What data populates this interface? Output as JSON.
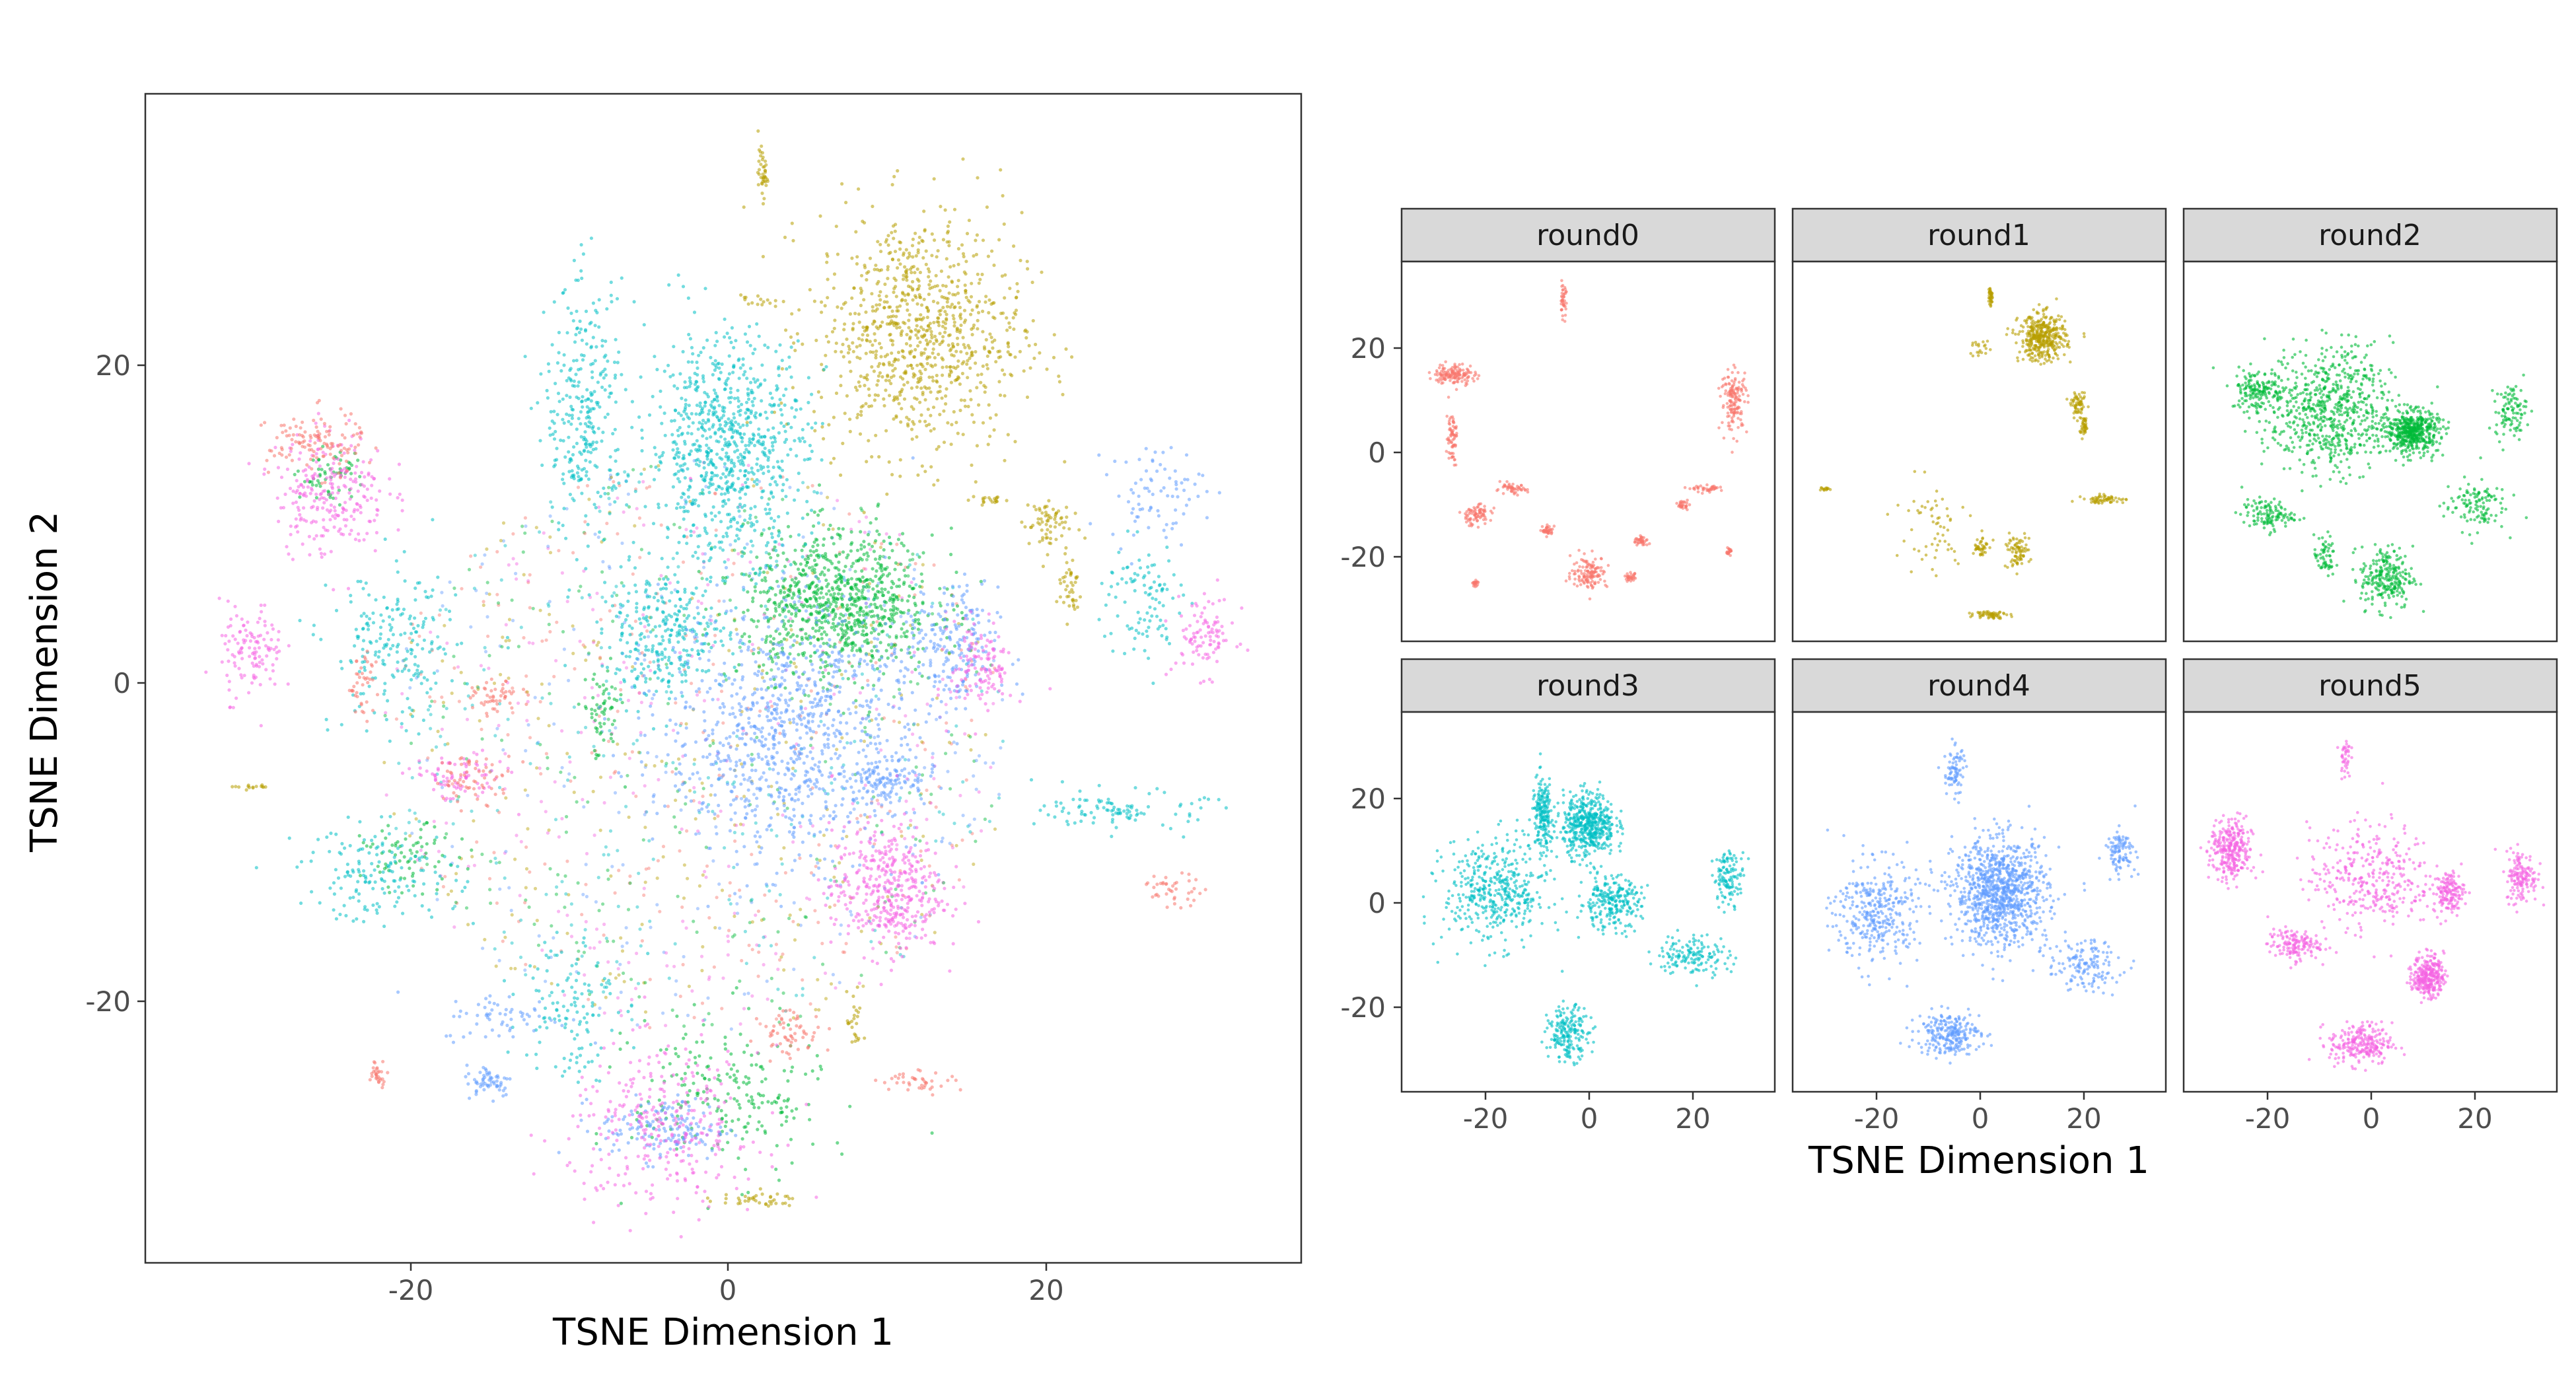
{
  "chart_data": [
    {
      "type": "scatter",
      "title": "",
      "xlabel": "TSNE Dimension 1",
      "ylabel": "TSNE Dimension 2",
      "xlim": [
        -36,
        36
      ],
      "ylim": [
        -36,
        37
      ],
      "x_ticks": [
        -20,
        0,
        20
      ],
      "y_ticks": [
        -20,
        0,
        20
      ],
      "x_tick_labels": [
        "-20",
        "0",
        "20"
      ],
      "y_tick_labels": [
        "-20",
        "0",
        "20"
      ],
      "grid": false,
      "legend": "none",
      "series": [
        {
          "name": "round0",
          "color": "#F8766D"
        },
        {
          "name": "round1",
          "color": "#B79F00"
        },
        {
          "name": "round2",
          "color": "#00BA38"
        },
        {
          "name": "round3",
          "color": "#00BFC4"
        },
        {
          "name": "round4",
          "color": "#619CFF"
        },
        {
          "name": "round5",
          "color": "#F564E3"
        }
      ],
      "clusters": [
        {
          "series": "round1",
          "cx": 12,
          "cy": 22,
          "rx": 6.5,
          "ry": 7.5,
          "n": 900
        },
        {
          "series": "round1",
          "cx": 2.2,
          "cy": 32,
          "rx": 0.3,
          "ry": 1.5,
          "n": 40
        },
        {
          "series": "round1",
          "cx": 20,
          "cy": 10,
          "rx": 1.5,
          "ry": 1.8,
          "n": 70
        },
        {
          "series": "round1",
          "cx": 21.5,
          "cy": 6,
          "rx": 0.8,
          "ry": 2.0,
          "n": 40
        },
        {
          "series": "round1",
          "cx": 16.5,
          "cy": 11.5,
          "rx": 1.2,
          "ry": 0.3,
          "n": 20
        },
        {
          "series": "round1",
          "cx": 1.5,
          "cy": -32.5,
          "rx": 3.0,
          "ry": 0.4,
          "n": 40
        },
        {
          "series": "round1",
          "cx": 8,
          "cy": -21.5,
          "rx": 0.5,
          "ry": 2.0,
          "n": 25
        },
        {
          "series": "round1",
          "cx": -30,
          "cy": -6.5,
          "rx": 1.2,
          "ry": 0.2,
          "n": 15
        },
        {
          "series": "round1",
          "cx": 1.8,
          "cy": 24,
          "rx": 1.0,
          "ry": 0.4,
          "n": 15
        },
        {
          "series": "round2",
          "cx": 7,
          "cy": 5,
          "rx": 6.0,
          "ry": 4.5,
          "n": 850
        },
        {
          "series": "round2",
          "cx": -8,
          "cy": -2,
          "rx": 1.2,
          "ry": 3.0,
          "n": 60
        },
        {
          "series": "round2",
          "cx": 0,
          "cy": -26,
          "rx": 6.0,
          "ry": 5.0,
          "n": 220
        },
        {
          "series": "round2",
          "cx": -25,
          "cy": 13,
          "rx": 2.0,
          "ry": 1.5,
          "n": 60
        },
        {
          "series": "round2",
          "cx": -20,
          "cy": -11,
          "rx": 3.0,
          "ry": 2.0,
          "n": 70
        },
        {
          "series": "round3",
          "cx": 0,
          "cy": 15,
          "rx": 5.0,
          "ry": 7.0,
          "n": 800
        },
        {
          "series": "round3",
          "cx": -9,
          "cy": 17,
          "rx": 2.5,
          "ry": 8.0,
          "n": 300
        },
        {
          "series": "round3",
          "cx": -21,
          "cy": 2,
          "rx": 4.0,
          "ry": 5.0,
          "n": 200
        },
        {
          "series": "round3",
          "cx": -22,
          "cy": -12,
          "rx": 5.0,
          "ry": 3.0,
          "n": 150
        },
        {
          "series": "round3",
          "cx": -4,
          "cy": 3,
          "rx": 4.0,
          "ry": 4.0,
          "n": 300
        },
        {
          "series": "round3",
          "cx": -10,
          "cy": -20,
          "rx": 3.0,
          "ry": 5.0,
          "n": 120
        },
        {
          "series": "round3",
          "cx": 26,
          "cy": 5,
          "rx": 2.5,
          "ry": 4.0,
          "n": 100
        },
        {
          "series": "round3",
          "cx": 25,
          "cy": -8,
          "rx": 5.0,
          "ry": 1.2,
          "n": 100
        },
        {
          "series": "round4",
          "cx": 4,
          "cy": -3,
          "rx": 8.0,
          "ry": 8.0,
          "n": 900
        },
        {
          "series": "round4",
          "cx": 14,
          "cy": 2,
          "rx": 3.0,
          "ry": 4.0,
          "n": 200
        },
        {
          "series": "round4",
          "cx": -4,
          "cy": -28,
          "rx": 4.0,
          "ry": 2.0,
          "n": 150
        },
        {
          "series": "round4",
          "cx": -15,
          "cy": -25,
          "rx": 1.5,
          "ry": 1.0,
          "n": 60
        },
        {
          "series": "round4",
          "cx": -14,
          "cy": -21,
          "rx": 4.0,
          "ry": 1.5,
          "n": 60
        },
        {
          "series": "round4",
          "cx": 10,
          "cy": -6,
          "rx": 2.5,
          "ry": 1.5,
          "n": 100
        },
        {
          "series": "round4",
          "cx": 27,
          "cy": 12,
          "rx": 3.0,
          "ry": 3.0,
          "n": 80
        },
        {
          "series": "round5",
          "cx": 10,
          "cy": -13,
          "rx": 3.5,
          "ry": 4.0,
          "n": 400
        },
        {
          "series": "round5",
          "cx": -25,
          "cy": 12,
          "rx": 3.5,
          "ry": 4.0,
          "n": 250
        },
        {
          "series": "round5",
          "cx": -30,
          "cy": 2,
          "rx": 2.0,
          "ry": 3.0,
          "n": 120
        },
        {
          "series": "round5",
          "cx": -4,
          "cy": -28,
          "rx": 6.0,
          "ry": 5.0,
          "n": 300
        },
        {
          "series": "round5",
          "cx": 30,
          "cy": 3,
          "rx": 2.0,
          "ry": 2.5,
          "n": 100
        },
        {
          "series": "round5",
          "cx": -17,
          "cy": -6,
          "rx": 3.0,
          "ry": 1.5,
          "n": 80
        },
        {
          "series": "round5",
          "cx": 16,
          "cy": 1,
          "rx": 2.0,
          "ry": 3.0,
          "n": 120
        },
        {
          "series": "round0",
          "cx": -26,
          "cy": 15,
          "rx": 3.0,
          "ry": 2.0,
          "n": 120
        },
        {
          "series": "round0",
          "cx": -23,
          "cy": 0,
          "rx": 1.0,
          "ry": 2.0,
          "n": 40
        },
        {
          "series": "round0",
          "cx": -14.5,
          "cy": -1,
          "rx": 1.5,
          "ry": 1.0,
          "n": 50
        },
        {
          "series": "round0",
          "cx": 28,
          "cy": -13,
          "rx": 2.0,
          "ry": 1.0,
          "n": 40
        },
        {
          "series": "round0",
          "cx": -22,
          "cy": -24.5,
          "rx": 0.6,
          "ry": 0.8,
          "n": 30
        },
        {
          "series": "round0",
          "cx": 4,
          "cy": -22,
          "rx": 2.0,
          "ry": 1.5,
          "n": 60
        },
        {
          "series": "round0",
          "cx": -16,
          "cy": -6,
          "rx": 2.5,
          "ry": 1.5,
          "n": 60
        },
        {
          "series": "round0",
          "cx": 12,
          "cy": -25,
          "rx": 2.5,
          "ry": 0.7,
          "n": 40
        }
      ],
      "background_points": 1600
    },
    {
      "type": "scatter",
      "layout": "facet_wrap",
      "xlabel": "TSNE Dimension 1",
      "ylabel": "",
      "xlim": [
        -36,
        36
      ],
      "ylim": [
        -36,
        37
      ],
      "x_ticks": [
        -20,
        0,
        20
      ],
      "y_ticks": [
        -20,
        0,
        20
      ],
      "x_tick_labels": [
        "-20",
        "0",
        "20"
      ],
      "y_tick_labels": [
        "-20",
        "0",
        "20"
      ],
      "grid": false,
      "legend": "none",
      "facets": [
        {
          "label": "round0",
          "color": "#F8766D",
          "clusters": [
            {
              "cx": -26,
              "cy": 15,
              "rx": 4.0,
              "ry": 2.0,
              "n": 140
            },
            {
              "cx": -26.5,
              "cy": 3,
              "rx": 1.0,
              "ry": 5.0,
              "n": 70
            },
            {
              "cx": -22,
              "cy": -12,
              "rx": 3.0,
              "ry": 2.0,
              "n": 80
            },
            {
              "cx": -15,
              "cy": -7,
              "rx": 3.0,
              "ry": 1.0,
              "n": 50
            },
            {
              "cx": -5,
              "cy": 29,
              "rx": 0.6,
              "ry": 3.0,
              "n": 40
            },
            {
              "cx": 28,
              "cy": 10,
              "rx": 2.5,
              "ry": 6.0,
              "n": 150
            },
            {
              "cx": 0,
              "cy": -23,
              "rx": 3.5,
              "ry": 3.0,
              "n": 130
            },
            {
              "cx": -8,
              "cy": -15,
              "rx": 1.0,
              "ry": 1.0,
              "n": 40
            },
            {
              "cx": 10,
              "cy": -17,
              "rx": 1.5,
              "ry": 1.0,
              "n": 40
            },
            {
              "cx": 23,
              "cy": -7,
              "rx": 3.0,
              "ry": 0.6,
              "n": 40
            },
            {
              "cx": 18,
              "cy": -10,
              "rx": 1.0,
              "ry": 0.8,
              "n": 30
            },
            {
              "cx": 27,
              "cy": -19,
              "rx": 0.6,
              "ry": 0.8,
              "n": 20
            },
            {
              "cx": -22,
              "cy": -25,
              "rx": 0.6,
              "ry": 0.6,
              "n": 20
            },
            {
              "cx": 8,
              "cy": -24,
              "rx": 1.2,
              "ry": 0.8,
              "n": 30
            }
          ]
        },
        {
          "label": "round1",
          "color": "#B79F00",
          "clusters": [
            {
              "cx": 12,
              "cy": 22,
              "rx": 4.5,
              "ry": 4.5,
              "n": 400
            },
            {
              "cx": 2,
              "cy": 30,
              "rx": 0.4,
              "ry": 2.0,
              "n": 40
            },
            {
              "cx": 19,
              "cy": 9,
              "rx": 1.5,
              "ry": 2.0,
              "n": 60
            },
            {
              "cx": 20,
              "cy": 5,
              "rx": 0.8,
              "ry": 2.0,
              "n": 40
            },
            {
              "cx": 24,
              "cy": -9,
              "rx": 4.0,
              "ry": 0.8,
              "n": 60
            },
            {
              "cx": 7,
              "cy": -19,
              "rx": 2.5,
              "ry": 3.0,
              "n": 80
            },
            {
              "cx": 2,
              "cy": -31,
              "rx": 3.0,
              "ry": 0.8,
              "n": 60
            },
            {
              "cx": 0,
              "cy": -18,
              "rx": 1.5,
              "ry": 2.0,
              "n": 40
            },
            {
              "cx": -30,
              "cy": -7,
              "rx": 1.2,
              "ry": 0.3,
              "n": 15
            },
            {
              "cx": -10,
              "cy": -15,
              "rx": 8.0,
              "ry": 10.0,
              "n": 60
            },
            {
              "cx": 0,
              "cy": 20,
              "rx": 2.0,
              "ry": 2.0,
              "n": 20
            }
          ]
        },
        {
          "label": "round2",
          "color": "#00BA38",
          "clusters": [
            {
              "cx": 8,
              "cy": 4,
              "rx": 5.0,
              "ry": 4.0,
              "n": 500
            },
            {
              "cx": -8,
              "cy": 8,
              "rx": 12.0,
              "ry": 12.0,
              "n": 700
            },
            {
              "cx": 3,
              "cy": -24,
              "rx": 5.0,
              "ry": 6.0,
              "n": 250
            },
            {
              "cx": -22,
              "cy": 12,
              "rx": 5.0,
              "ry": 4.0,
              "n": 150
            },
            {
              "cx": 27,
              "cy": 8,
              "rx": 3.0,
              "ry": 5.0,
              "n": 100
            },
            {
              "cx": -20,
              "cy": -12,
              "rx": 5.0,
              "ry": 3.0,
              "n": 120
            },
            {
              "cx": 20,
              "cy": -10,
              "rx": 6.0,
              "ry": 5.0,
              "n": 120
            },
            {
              "cx": -9,
              "cy": -20,
              "rx": 2.0,
              "ry": 4.0,
              "n": 60
            }
          ]
        },
        {
          "label": "round3",
          "color": "#00BFC4",
          "clusters": [
            {
              "cx": 0,
              "cy": 15,
              "rx": 5.0,
              "ry": 6.0,
              "n": 500
            },
            {
              "cx": -9,
              "cy": 17,
              "rx": 2.0,
              "ry": 7.0,
              "n": 200
            },
            {
              "cx": -18,
              "cy": 2,
              "rx": 10.0,
              "ry": 10.0,
              "n": 450
            },
            {
              "cx": -4,
              "cy": -25,
              "rx": 4.0,
              "ry": 5.0,
              "n": 200
            },
            {
              "cx": 27,
              "cy": 5,
              "rx": 3.0,
              "ry": 5.0,
              "n": 120
            },
            {
              "cx": 20,
              "cy": -10,
              "rx": 7.0,
              "ry": 4.0,
              "n": 150
            },
            {
              "cx": 4,
              "cy": 0,
              "rx": 6.0,
              "ry": 5.0,
              "n": 250
            }
          ]
        },
        {
          "label": "round4",
          "color": "#619CFF",
          "clusters": [
            {
              "cx": 4,
              "cy": 2,
              "rx": 9.0,
              "ry": 10.0,
              "n": 1000
            },
            {
              "cx": -6,
              "cy": -25,
              "rx": 6.0,
              "ry": 4.0,
              "n": 250
            },
            {
              "cx": -20,
              "cy": -2,
              "rx": 8.0,
              "ry": 10.0,
              "n": 350
            },
            {
              "cx": -5,
              "cy": 25,
              "rx": 2.0,
              "ry": 5.0,
              "n": 80
            },
            {
              "cx": 27,
              "cy": 10,
              "rx": 3.0,
              "ry": 4.0,
              "n": 100
            },
            {
              "cx": 20,
              "cy": -12,
              "rx": 7.0,
              "ry": 5.0,
              "n": 150
            }
          ]
        },
        {
          "label": "round5",
          "color": "#F564E3",
          "clusters": [
            {
              "cx": 11,
              "cy": -14,
              "rx": 3.0,
              "ry": 4.0,
              "n": 300
            },
            {
              "cx": -27,
              "cy": 10,
              "rx": 4.0,
              "ry": 6.0,
              "n": 300
            },
            {
              "cx": -2,
              "cy": -27,
              "rx": 6.0,
              "ry": 4.0,
              "n": 250
            },
            {
              "cx": 29,
              "cy": 5,
              "rx": 3.0,
              "ry": 5.0,
              "n": 150
            },
            {
              "cx": 15,
              "cy": 2,
              "rx": 3.0,
              "ry": 4.0,
              "n": 150
            },
            {
              "cx": -15,
              "cy": -8,
              "rx": 5.0,
              "ry": 3.0,
              "n": 150
            },
            {
              "cx": 0,
              "cy": 5,
              "rx": 12.0,
              "ry": 10.0,
              "n": 350
            },
            {
              "cx": -5,
              "cy": 28,
              "rx": 1.0,
              "ry": 4.0,
              "n": 40
            }
          ]
        }
      ]
    }
  ]
}
